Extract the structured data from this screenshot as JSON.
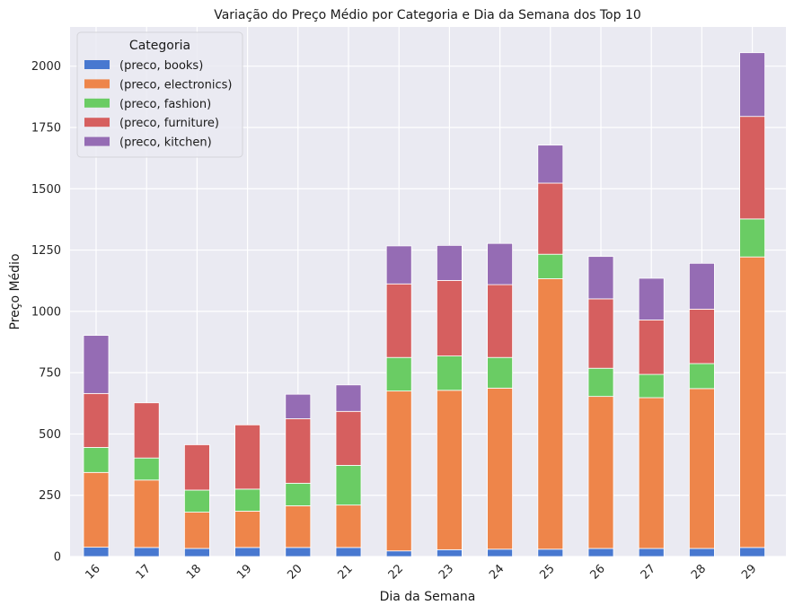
{
  "chart_data": {
    "type": "bar",
    "stacked": true,
    "title": "Variação do Preço Médio por Categoria e Dia da Semana dos Top 10",
    "xlabel": "Dia da Semana",
    "ylabel": "Preço Médio",
    "categories": [
      "16",
      "17",
      "18",
      "19",
      "20",
      "21",
      "22",
      "23",
      "24",
      "25",
      "26",
      "27",
      "28",
      "29"
    ],
    "ylim": [
      0,
      2160
    ],
    "yticks": [
      0,
      250,
      500,
      750,
      1000,
      1250,
      1500,
      1750,
      2000
    ],
    "grid": true,
    "legend": {
      "title": "Categoria",
      "placement": "top-left"
    },
    "series": [
      {
        "name": "(preco, books)",
        "color": "#4878d0",
        "values": [
          38,
          37,
          33,
          37,
          37,
          37,
          23,
          28,
          30,
          30,
          33,
          33,
          33,
          37
        ]
      },
      {
        "name": "(preco, electronics)",
        "color": "#ee854a",
        "values": [
          305,
          275,
          148,
          148,
          170,
          173,
          652,
          650,
          657,
          1103,
          620,
          615,
          652,
          1185
        ]
      },
      {
        "name": "(preco, fashion)",
        "color": "#6acc64",
        "values": [
          102,
          90,
          90,
          90,
          92,
          162,
          137,
          140,
          125,
          100,
          115,
          95,
          102,
          155
        ]
      },
      {
        "name": "(preco, furniture)",
        "color": "#d65f5f",
        "values": [
          220,
          225,
          185,
          262,
          263,
          220,
          300,
          308,
          297,
          290,
          283,
          222,
          222,
          418
        ]
      },
      {
        "name": "(preco, kitchen)",
        "color": "#956cb4",
        "values": [
          237,
          0,
          0,
          0,
          100,
          108,
          155,
          143,
          168,
          155,
          173,
          170,
          187,
          260
        ]
      }
    ]
  }
}
